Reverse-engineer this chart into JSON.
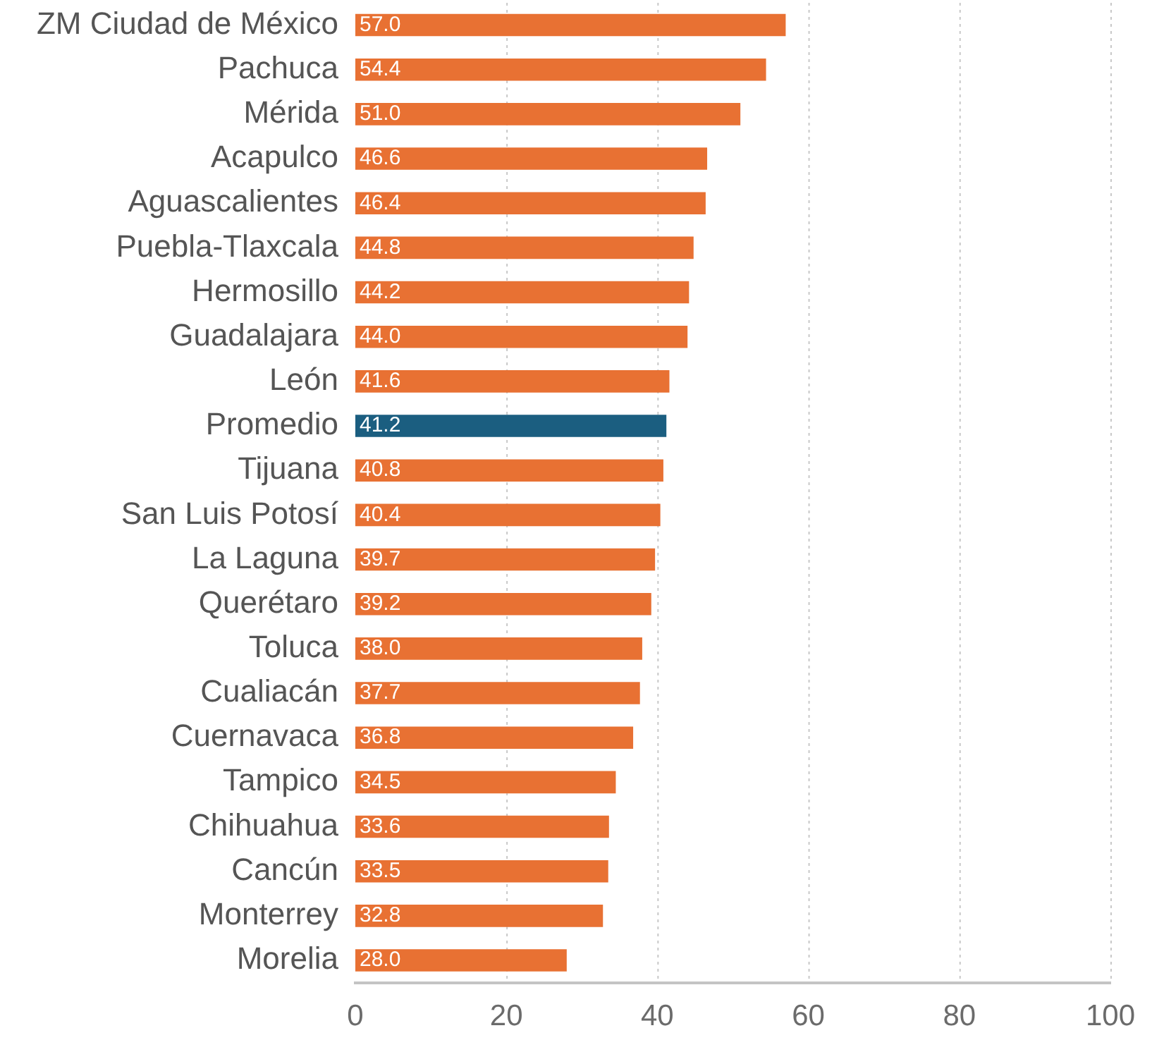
{
  "chart_data": {
    "type": "bar",
    "orientation": "horizontal",
    "categories": [
      "ZM Ciudad de México",
      "Pachuca",
      "Mérida",
      "Acapulco",
      "Aguascalientes",
      "Puebla-Tlaxcala",
      "Hermosillo",
      "Guadalajara",
      "León",
      "Promedio",
      "Tijuana",
      "San Luis Potosí",
      "La Laguna",
      "Querétaro",
      "Toluca",
      "Cualiacán",
      "Cuernavaca",
      "Tampico",
      "Chihuahua",
      "Cancún",
      "Monterrey",
      "Morelia"
    ],
    "values": [
      57.0,
      54.4,
      51.0,
      46.6,
      46.4,
      44.8,
      44.2,
      44.0,
      41.6,
      41.2,
      40.8,
      40.4,
      39.7,
      39.2,
      38.0,
      37.7,
      36.8,
      34.5,
      33.6,
      33.5,
      32.8,
      28.0
    ],
    "value_labels": [
      "57.0",
      "54.4",
      "51.0",
      "46.6",
      "46.4",
      "44.8",
      "44.2",
      "44.0",
      "41.6",
      "41.2",
      "40.8",
      "40.4",
      "39.7",
      "39.2",
      "38.0",
      "37.7",
      "36.8",
      "34.5",
      "33.6",
      "33.5",
      "32.8",
      "28.0"
    ],
    "colors": [
      "#e87133",
      "#e87133",
      "#e87133",
      "#e87133",
      "#e87133",
      "#e87133",
      "#e87133",
      "#e87133",
      "#e87133",
      "#1b5e80",
      "#e87133",
      "#e87133",
      "#e87133",
      "#e87133",
      "#e87133",
      "#e87133",
      "#e87133",
      "#e87133",
      "#e87133",
      "#e87133",
      "#e87133",
      "#e87133"
    ],
    "xlim": [
      0,
      100
    ],
    "xticks": [
      0,
      20,
      40,
      60,
      80,
      100
    ],
    "grid": "x"
  }
}
